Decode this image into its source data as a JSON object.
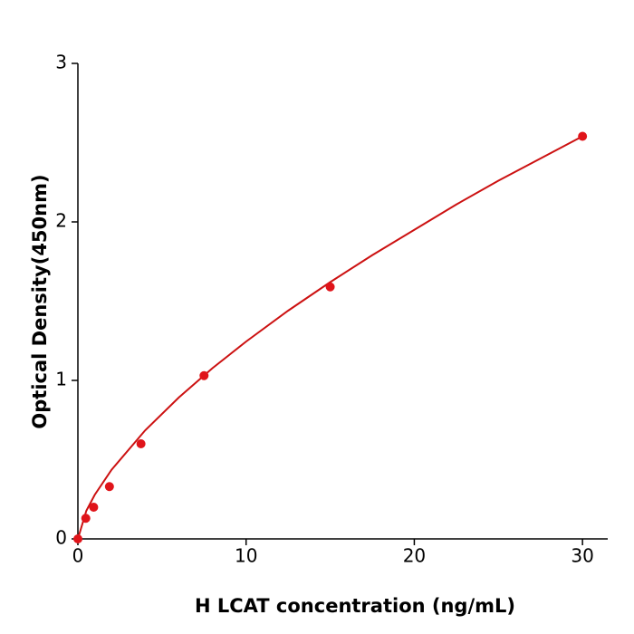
{
  "chart_data": {
    "type": "scatter",
    "xlabel": "H  LCAT concentration (ng/mL)",
    "ylabel": "Optical Density(450nm)",
    "x": [
      0,
      0.469,
      0.938,
      1.875,
      3.75,
      7.5,
      15,
      30
    ],
    "values": [
      0.0,
      0.13,
      0.2,
      0.33,
      0.6,
      1.03,
      1.59,
      2.54
    ],
    "color": "#e0141a",
    "curve": {
      "color": "#cc1111",
      "x": [
        0,
        0.5,
        1,
        2,
        4,
        6,
        8,
        10,
        12.5,
        15,
        17.5,
        20,
        22.5,
        25,
        27.5,
        30
      ],
      "values": [
        0,
        0.177,
        0.278,
        0.436,
        0.685,
        0.892,
        1.077,
        1.245,
        1.44,
        1.62,
        1.79,
        1.95,
        2.11,
        2.26,
        2.4,
        2.54
      ]
    },
    "xlim": [
      0,
      31.5
    ],
    "ylim": [
      0,
      3
    ],
    "xticks": [
      0,
      10,
      20,
      30
    ],
    "yticks": [
      0,
      1,
      2,
      3
    ],
    "grid": false
  }
}
